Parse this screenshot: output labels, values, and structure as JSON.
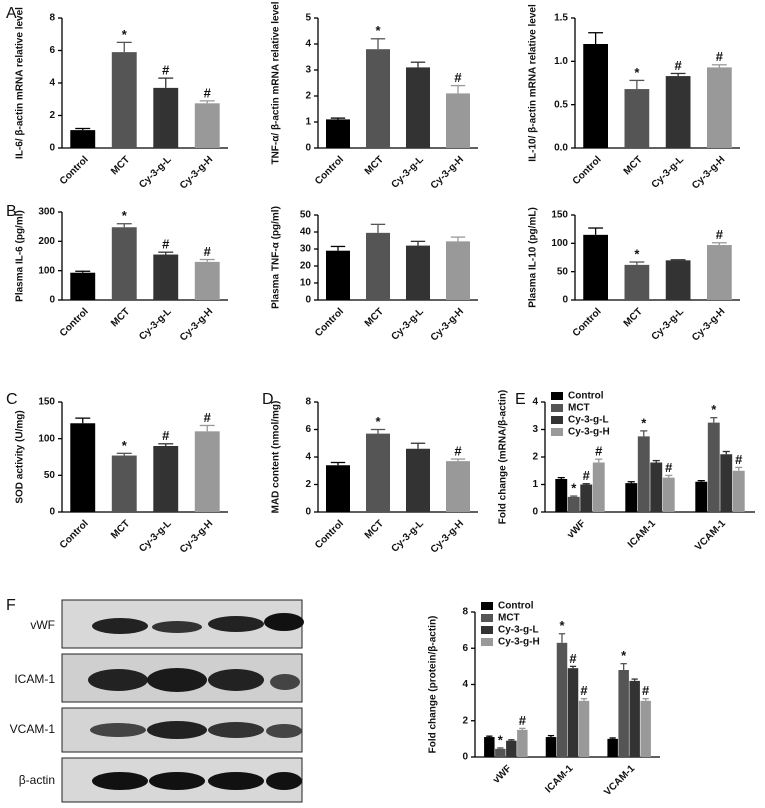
{
  "chart_data": [
    {
      "type": "bar",
      "panel": "A",
      "ylabel": "IL-6/ β-actin mRNA relative level",
      "categories": [
        "Control",
        "MCT",
        "Cy-3-g-L",
        "Cy-3-g-H"
      ],
      "values": [
        1.1,
        5.9,
        3.7,
        2.75
      ],
      "errors": [
        0.1,
        0.6,
        0.6,
        0.15
      ],
      "annotations": [
        null,
        "*",
        "#",
        "#"
      ],
      "colors": [
        "#000000",
        "#555555",
        "#333333",
        "#999999"
      ],
      "ylim": [
        0,
        8
      ],
      "yticks": [
        0,
        2,
        4,
        6,
        8
      ]
    },
    {
      "type": "bar",
      "ylabel": "TNF-α/ β-actin mRNA relative level",
      "categories": [
        "Control",
        "MCT",
        "Cy-3-g-L",
        "Cy-3-g-H"
      ],
      "values": [
        1.1,
        3.8,
        3.1,
        2.1
      ],
      "errors": [
        0.05,
        0.4,
        0.2,
        0.3
      ],
      "annotations": [
        null,
        "*",
        null,
        "#"
      ],
      "colors": [
        "#000000",
        "#555555",
        "#333333",
        "#999999"
      ],
      "ylim": [
        0,
        5
      ],
      "yticks": [
        0,
        1,
        2,
        3,
        4,
        5
      ]
    },
    {
      "type": "bar",
      "ylabel": "IL-10/ β-actin mRNA relative level",
      "categories": [
        "Control",
        "MCT",
        "Cy-3-g-L",
        "Cy-3-g-H"
      ],
      "values": [
        1.2,
        0.68,
        0.83,
        0.93
      ],
      "errors": [
        0.13,
        0.1,
        0.03,
        0.03
      ],
      "annotations": [
        null,
        "*",
        "#",
        "#"
      ],
      "colors": [
        "#000000",
        "#555555",
        "#333333",
        "#999999"
      ],
      "ylim": [
        0,
        1.5
      ],
      "yticks": [
        {
          "value": 0,
          "label": "0.0"
        },
        {
          "value": 0.5,
          "label": "0.5"
        },
        {
          "value": 1,
          "label": "1.0"
        },
        {
          "value": 1.5,
          "label": "1.5"
        }
      ]
    },
    {
      "type": "bar",
      "panel": "B",
      "ylabel": "Plasma IL-6 (pg/ml)",
      "categories": [
        "Control",
        "MCT",
        "Cy-3-g-L",
        "Cy-3-g-H"
      ],
      "values": [
        93,
        248,
        155,
        130
      ],
      "errors": [
        5,
        12,
        8,
        8
      ],
      "annotations": [
        null,
        "*",
        "#",
        "#"
      ],
      "colors": [
        "#000000",
        "#555555",
        "#333333",
        "#999999"
      ],
      "ylim": [
        0,
        300
      ],
      "yticks": [
        0,
        100,
        200,
        300
      ]
    },
    {
      "type": "bar",
      "ylabel": "Plasma TNF-α (pg/ml)",
      "categories": [
        "Control",
        "MCT",
        "Cy-3-g-L",
        "Cy-3-g-H"
      ],
      "values": [
        29,
        39.5,
        32,
        34.5
      ],
      "errors": [
        2.5,
        5,
        2.5,
        2.5
      ],
      "annotations": [
        null,
        null,
        null,
        null
      ],
      "colors": [
        "#000000",
        "#555555",
        "#333333",
        "#999999"
      ],
      "ylim": [
        0,
        50
      ],
      "yticks": [
        0,
        10,
        20,
        30,
        40,
        50
      ]
    },
    {
      "type": "bar",
      "ylabel": "Plasma IL-10 (pg/mL)",
      "categories": [
        "Control",
        "MCT",
        "Cy-3-g-L",
        "Cy-3-g-H"
      ],
      "values": [
        115,
        62,
        70,
        97
      ],
      "errors": [
        12,
        5,
        1,
        4
      ],
      "annotations": [
        null,
        "*",
        null,
        "#"
      ],
      "colors": [
        "#000000",
        "#555555",
        "#333333",
        "#999999"
      ],
      "ylim": [
        0,
        150
      ],
      "yticks": [
        0,
        50,
        100,
        150
      ]
    },
    {
      "type": "bar",
      "panel": "C",
      "ylabel": "SOD activity (U/mg)",
      "categories": [
        "Control",
        "MCT",
        "Cy-3-g-L",
        "Cy-3-g-H"
      ],
      "values": [
        121,
        77,
        90,
        110
      ],
      "errors": [
        7,
        3,
        3,
        8
      ],
      "annotations": [
        null,
        "*",
        "#",
        "#"
      ],
      "colors": [
        "#000000",
        "#555555",
        "#333333",
        "#999999"
      ],
      "ylim": [
        0,
        150
      ],
      "yticks": [
        0,
        50,
        100,
        150
      ]
    },
    {
      "type": "bar",
      "panel": "D",
      "ylabel": "MAD content (nmol/mg)",
      "categories": [
        "Control",
        "MCT",
        "Cy-3-g-L",
        "Cy-3-g-H"
      ],
      "values": [
        3.4,
        5.7,
        4.6,
        3.7
      ],
      "errors": [
        0.2,
        0.3,
        0.4,
        0.15
      ],
      "annotations": [
        null,
        "*",
        null,
        "#"
      ],
      "colors": [
        "#000000",
        "#555555",
        "#333333",
        "#999999"
      ],
      "ylim": [
        0,
        8
      ],
      "yticks": [
        0,
        2,
        4,
        6,
        8
      ]
    },
    {
      "type": "bar",
      "panel": "E",
      "ylabel": "Fold change (mRNA/β-actin)",
      "categories": [
        "vWF",
        "ICAM-1",
        "VCAM-1"
      ],
      "legend": "upper left",
      "ylim": [
        0,
        4
      ],
      "yticks": [
        0,
        1,
        2,
        3,
        4
      ],
      "series": [
        {
          "name": "Control",
          "color": "#000000",
          "values": [
            1.2,
            1.05,
            1.1
          ],
          "errors": [
            0.05,
            0.05,
            0.04
          ],
          "annotations": [
            null,
            null,
            null
          ]
        },
        {
          "name": "MCT",
          "color": "#555555",
          "values": [
            0.55,
            2.75,
            3.25
          ],
          "errors": [
            0.03,
            0.2,
            0.18
          ],
          "annotations": [
            "*",
            "*",
            "*"
          ]
        },
        {
          "name": "Cy-3-g-L",
          "color": "#333333",
          "values": [
            1.0,
            1.8,
            2.1
          ],
          "errors": [
            0.03,
            0.07,
            0.1
          ],
          "annotations": [
            "#",
            null,
            null
          ]
        },
        {
          "name": "Cy-3-g-H",
          "color": "#999999",
          "values": [
            1.8,
            1.25,
            1.5
          ],
          "errors": [
            0.12,
            0.08,
            0.12
          ],
          "annotations": [
            "#",
            "#",
            "#"
          ]
        }
      ]
    },
    {
      "type": "bar",
      "panel": "F",
      "ylabel": "Fold change (protein/β-actin)",
      "categories": [
        "vWF",
        "ICAM-1",
        "VCAM-1"
      ],
      "legend": "upper left",
      "ylim": [
        0,
        8
      ],
      "yticks": [
        0,
        2,
        4,
        6,
        8
      ],
      "series": [
        {
          "name": "Control",
          "color": "#000000",
          "values": [
            1.1,
            1.1,
            1.0
          ],
          "errors": [
            0.05,
            0.08,
            0.05
          ],
          "annotations": [
            null,
            null,
            null
          ]
        },
        {
          "name": "MCT",
          "color": "#555555",
          "values": [
            0.45,
            6.3,
            4.8
          ],
          "errors": [
            0.05,
            0.5,
            0.35
          ],
          "annotations": [
            "*",
            "*",
            "*"
          ]
        },
        {
          "name": "Cy-3-g-L",
          "color": "#333333",
          "values": [
            0.9,
            4.9,
            4.2
          ],
          "errors": [
            0.05,
            0.1,
            0.1
          ],
          "annotations": [
            null,
            "#",
            null
          ]
        },
        {
          "name": "Cy-3-g-H",
          "color": "#999999",
          "values": [
            1.5,
            3.1,
            3.1
          ],
          "errors": [
            0.08,
            0.12,
            0.12
          ],
          "annotations": [
            "#",
            "#",
            "#"
          ]
        }
      ]
    }
  ],
  "blot": {
    "labels": [
      "vWF",
      "ICAM-1",
      "VCAM-1",
      "β-actin"
    ]
  }
}
